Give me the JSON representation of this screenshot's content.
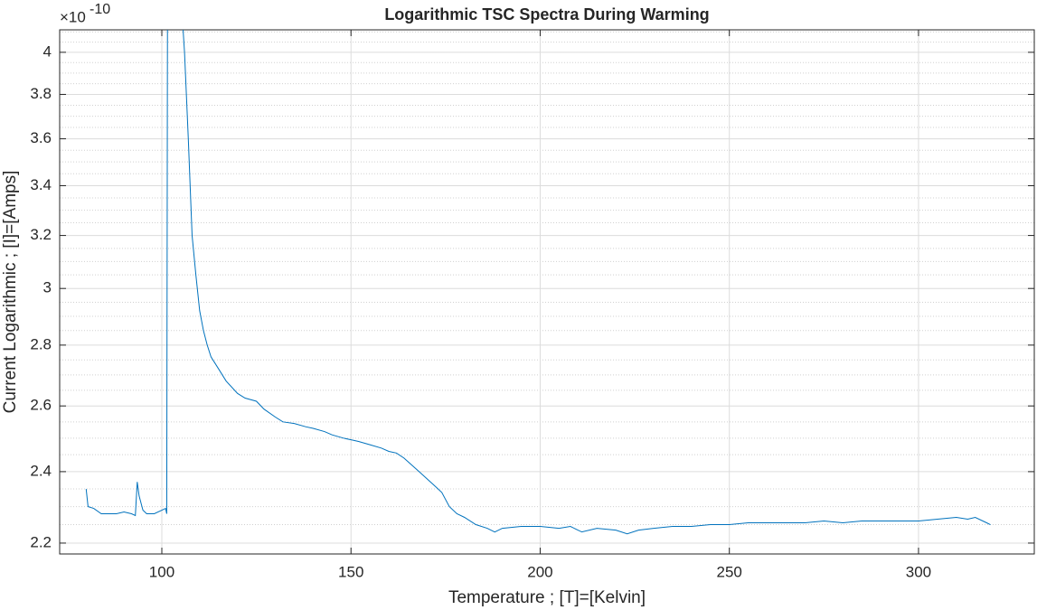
{
  "chart_data": {
    "type": "line",
    "title": "Logarithmic TSC Spectra During Warming",
    "x_label": "Temperature ; [T]=[Kelvin]",
    "y_label": "Current Logarithmic ; [I]=[Amps]",
    "y_multiplier": "×10",
    "y_multiplier_exponent": "-10",
    "y_log": true,
    "grid": true,
    "minor_grid": true,
    "color": "#0072bd",
    "xlim": [
      73,
      330.6
    ],
    "ylim": [
      2.171e-10,
      4.111e-10
    ],
    "xticks": [
      100,
      150,
      200,
      250,
      300
    ],
    "yticks": [
      {
        "value": 2.2e-10,
        "label": "2.2"
      },
      {
        "value": 2.4e-10,
        "label": "2.4"
      },
      {
        "value": 2.6e-10,
        "label": "2.6"
      },
      {
        "value": 2.8e-10,
        "label": "2.8"
      },
      {
        "value": 3e-10,
        "label": "3"
      },
      {
        "value": 3.2e-10,
        "label": "3.2"
      },
      {
        "value": 3.4e-10,
        "label": "3.4"
      },
      {
        "value": 3.6e-10,
        "label": "3.6"
      },
      {
        "value": 3.8e-10,
        "label": "3.8"
      },
      {
        "value": 4e-10,
        "label": "4"
      }
    ],
    "yminorticks": [
      2.25e-10,
      2.3e-10,
      2.35e-10,
      2.45e-10,
      2.5e-10,
      2.55e-10,
      2.65e-10,
      2.7e-10,
      2.75e-10,
      2.85e-10,
      2.9e-10,
      2.95e-10,
      3.05e-10,
      3.1e-10,
      3.15e-10,
      3.25e-10,
      3.3e-10,
      3.35e-10,
      3.45e-10,
      3.5e-10,
      3.55e-10,
      3.65e-10,
      3.7e-10,
      3.75e-10,
      3.85e-10,
      3.9e-10,
      3.95e-10,
      4.05e-10,
      4.1e-10
    ],
    "x": [
      80,
      80.5,
      82,
      84,
      86,
      88,
      90,
      92,
      93,
      93.5,
      94,
      95,
      96,
      98,
      100,
      101,
      101.3,
      101.5,
      105,
      106,
      107,
      108,
      109,
      110,
      111,
      112,
      113,
      115,
      117,
      120,
      122,
      125,
      127,
      130,
      132,
      135,
      138,
      140,
      143,
      145,
      148,
      150,
      152,
      155,
      158,
      160,
      162,
      164,
      166,
      168,
      170,
      172,
      174,
      176,
      178,
      180,
      183,
      186,
      188,
      190,
      195,
      200,
      205,
      208,
      211,
      215,
      220,
      223,
      226,
      230,
      235,
      240,
      245,
      250,
      255,
      260,
      265,
      270,
      275,
      280,
      285,
      290,
      295,
      300,
      305,
      310,
      313,
      315,
      318,
      319
    ],
    "values": [
      2.35e-10,
      2.3e-10,
      2.295e-10,
      2.28e-10,
      2.28e-10,
      2.28e-10,
      2.285e-10,
      2.28e-10,
      2.275e-10,
      2.37e-10,
      2.33e-10,
      2.29e-10,
      2.28e-10,
      2.28e-10,
      2.29e-10,
      2.295e-10,
      2.28e-10,
      4.2e-10,
      4.3e-10,
      4e-10,
      3.6e-10,
      3.2e-10,
      3.05e-10,
      2.92e-10,
      2.85e-10,
      2.8e-10,
      2.76e-10,
      2.72e-10,
      2.68e-10,
      2.64e-10,
      2.625e-10,
      2.615e-10,
      2.59e-10,
      2.565e-10,
      2.55e-10,
      2.545e-10,
      2.535e-10,
      2.53e-10,
      2.52e-10,
      2.51e-10,
      2.5e-10,
      2.495e-10,
      2.49e-10,
      2.48e-10,
      2.47e-10,
      2.46e-10,
      2.455e-10,
      2.44e-10,
      2.42e-10,
      2.4e-10,
      2.38e-10,
      2.36e-10,
      2.34e-10,
      2.3e-10,
      2.28e-10,
      2.27e-10,
      2.25e-10,
      2.24e-10,
      2.23e-10,
      2.24e-10,
      2.245e-10,
      2.245e-10,
      2.24e-10,
      2.245e-10,
      2.23e-10,
      2.24e-10,
      2.235e-10,
      2.225e-10,
      2.235e-10,
      2.24e-10,
      2.245e-10,
      2.245e-10,
      2.25e-10,
      2.25e-10,
      2.255e-10,
      2.255e-10,
      2.255e-10,
      2.255e-10,
      2.26e-10,
      2.255e-10,
      2.26e-10,
      2.26e-10,
      2.26e-10,
      2.26e-10,
      2.265e-10,
      2.27e-10,
      2.265e-10,
      2.27e-10,
      2.255e-10,
      2.25e-10
    ]
  }
}
